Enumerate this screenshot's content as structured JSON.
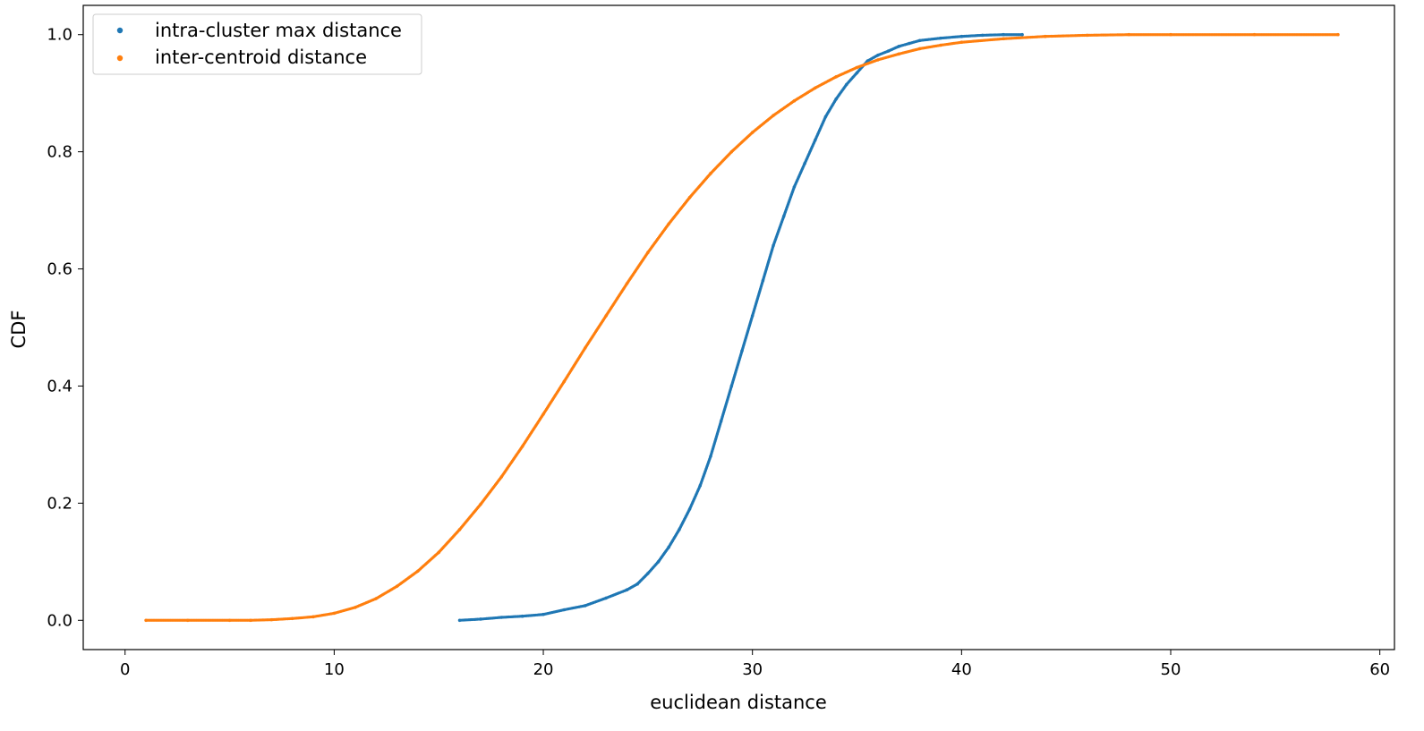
{
  "chart_data": {
    "type": "scatter",
    "xlabel": "euclidean distance",
    "ylabel": "CDF",
    "xlim": [
      -2,
      60.7
    ],
    "ylim": [
      -0.05,
      1.05
    ],
    "xticks": [
      "0",
      "10",
      "20",
      "30",
      "40",
      "50",
      "60"
    ],
    "yticks": [
      "0.0",
      "0.2",
      "0.4",
      "0.6",
      "0.8",
      "1.0"
    ],
    "grid": false,
    "legend_position": "top-left",
    "series": [
      {
        "name": "intra-cluster max distance",
        "color": "#1f77b4",
        "points": [
          [
            16,
            0.0
          ],
          [
            17,
            0.002
          ],
          [
            18,
            0.005
          ],
          [
            19,
            0.007
          ],
          [
            20,
            0.01
          ],
          [
            21,
            0.018
          ],
          [
            22,
            0.025
          ],
          [
            23,
            0.038
          ],
          [
            24,
            0.052
          ],
          [
            24.5,
            0.062
          ],
          [
            25,
            0.08
          ],
          [
            25.5,
            0.1
          ],
          [
            26,
            0.125
          ],
          [
            26.5,
            0.155
          ],
          [
            27,
            0.19
          ],
          [
            27.5,
            0.23
          ],
          [
            28,
            0.28
          ],
          [
            28.5,
            0.34
          ],
          [
            29,
            0.4
          ],
          [
            29.5,
            0.46
          ],
          [
            30,
            0.52
          ],
          [
            30.5,
            0.58
          ],
          [
            31,
            0.64
          ],
          [
            31.5,
            0.69
          ],
          [
            32,
            0.74
          ],
          [
            32.5,
            0.78
          ],
          [
            33,
            0.82
          ],
          [
            33.5,
            0.86
          ],
          [
            34,
            0.89
          ],
          [
            34.5,
            0.915
          ],
          [
            35,
            0.935
          ],
          [
            35.5,
            0.955
          ],
          [
            36,
            0.965
          ],
          [
            36.5,
            0.972
          ],
          [
            37,
            0.98
          ],
          [
            37.5,
            0.985
          ],
          [
            38,
            0.99
          ],
          [
            39,
            0.994
          ],
          [
            40,
            0.997
          ],
          [
            41,
            0.999
          ],
          [
            42,
            1.0
          ],
          [
            42.9,
            1.0
          ]
        ]
      },
      {
        "name": "inter-centroid distance",
        "color": "#ff7f0e",
        "points": [
          [
            1,
            0.0
          ],
          [
            3,
            0.0
          ],
          [
            5,
            0.0
          ],
          [
            6,
            0.0
          ],
          [
            7,
            0.001
          ],
          [
            8,
            0.003
          ],
          [
            9,
            0.006
          ],
          [
            10,
            0.012
          ],
          [
            11,
            0.022
          ],
          [
            12,
            0.037
          ],
          [
            13,
            0.058
          ],
          [
            14,
            0.084
          ],
          [
            15,
            0.116
          ],
          [
            16,
            0.155
          ],
          [
            17,
            0.198
          ],
          [
            18,
            0.245
          ],
          [
            19,
            0.297
          ],
          [
            20,
            0.352
          ],
          [
            21,
            0.408
          ],
          [
            22,
            0.465
          ],
          [
            23,
            0.52
          ],
          [
            24,
            0.575
          ],
          [
            25,
            0.628
          ],
          [
            26,
            0.677
          ],
          [
            27,
            0.722
          ],
          [
            28,
            0.763
          ],
          [
            29,
            0.8
          ],
          [
            30,
            0.833
          ],
          [
            31,
            0.862
          ],
          [
            32,
            0.887
          ],
          [
            33,
            0.909
          ],
          [
            34,
            0.928
          ],
          [
            35,
            0.944
          ],
          [
            36,
            0.957
          ],
          [
            37,
            0.967
          ],
          [
            38,
            0.976
          ],
          [
            39,
            0.982
          ],
          [
            40,
            0.987
          ],
          [
            42,
            0.993
          ],
          [
            44,
            0.997
          ],
          [
            46,
            0.999
          ],
          [
            48,
            1.0
          ],
          [
            50,
            1.0
          ],
          [
            54,
            1.0
          ],
          [
            58,
            1.0
          ]
        ]
      }
    ]
  }
}
